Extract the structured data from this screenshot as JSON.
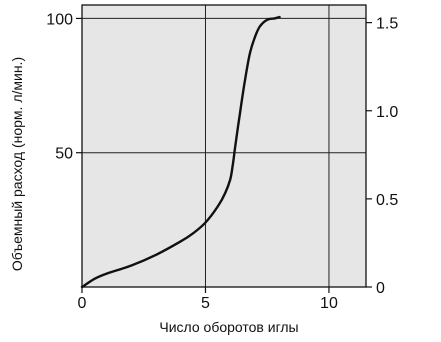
{
  "chart_data": {
    "type": "line",
    "title": "",
    "xlabel": "Число оборотов иглы",
    "ylabel": "Объемный расход (норм. л/мин.)",
    "xlim": [
      0,
      11.5
    ],
    "ylim": [
      0,
      105
    ],
    "y2lim": [
      0,
      1.6
    ],
    "grid": true,
    "plot_background": "#e6e6e6",
    "line_color": "#111111",
    "x_ticks": [
      {
        "value": 0,
        "label": "0"
      },
      {
        "value": 5,
        "label": "5"
      },
      {
        "value": 10,
        "label": "10"
      }
    ],
    "y_ticks": [
      {
        "value": 50,
        "label": "50"
      },
      {
        "value": 100,
        "label": "100"
      }
    ],
    "y2_ticks": [
      {
        "value": 0,
        "label": "0"
      },
      {
        "value": 0.5,
        "label": "0.5"
      },
      {
        "value": 1.0,
        "label": "1.0"
      },
      {
        "value": 1.5,
        "label": "1.5"
      }
    ],
    "series": [
      {
        "x": [
          0,
          0.5,
          1,
          2,
          3,
          4,
          4.5,
          5,
          5.5,
          5.8,
          6.0,
          6.1,
          6.2,
          6.4,
          6.6,
          6.8,
          7.0,
          7.2,
          7.5,
          7.8,
          8.0
        ],
        "y": [
          0,
          3,
          5,
          8,
          12,
          17,
          20,
          24,
          30,
          35,
          40,
          45,
          52,
          65,
          77,
          87,
          93,
          97,
          99.5,
          100,
          100.5
        ]
      }
    ]
  }
}
